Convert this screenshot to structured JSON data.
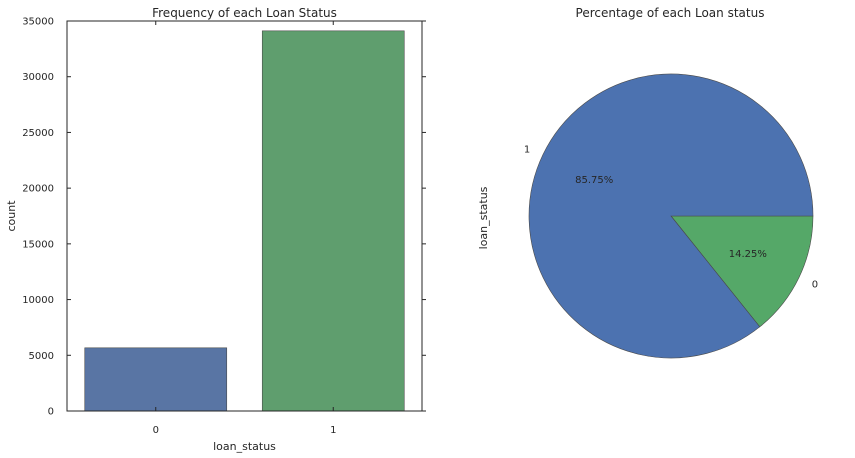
{
  "chart_data": [
    {
      "type": "bar",
      "title": "Frequency of each Loan Status",
      "xlabel": "loan_status",
      "ylabel": "count",
      "categories": [
        "0",
        "1"
      ],
      "values": [
        5670,
        34116
      ],
      "ylim": [
        0,
        35000
      ],
      "yticks": [
        0,
        5000,
        10000,
        15000,
        20000,
        25000,
        30000,
        35000
      ],
      "colors": [
        "#5975a4",
        "#5f9e6e"
      ],
      "grid": false
    },
    {
      "type": "pie",
      "title": "Percentage of each Loan status",
      "ylabel": "loan_status",
      "labels": [
        "0",
        "1"
      ],
      "values": [
        14.25,
        85.75
      ],
      "value_labels": [
        "14.25%",
        "85.75%"
      ],
      "colors": [
        "#55a868",
        "#4c72b0"
      ]
    }
  ]
}
